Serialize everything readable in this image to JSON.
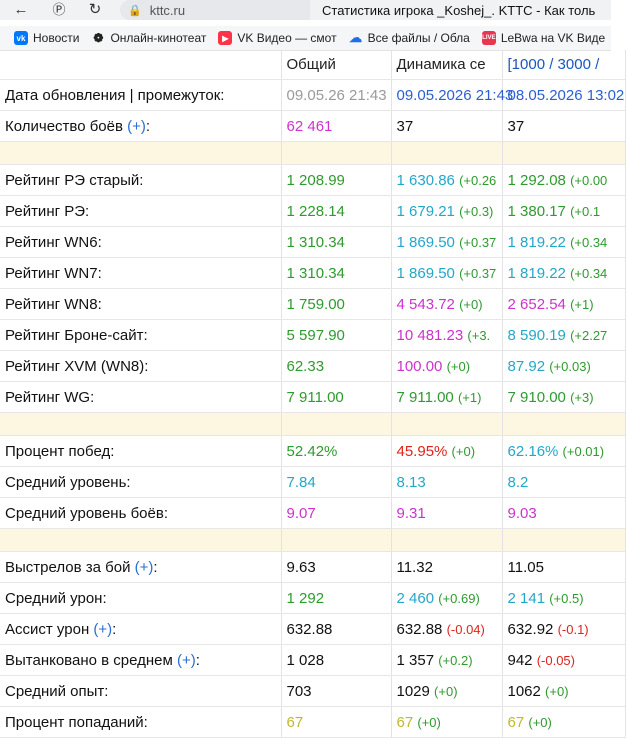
{
  "browser": {
    "url": "kttc.ru",
    "tab_title": "Статистика игрока _Koshej_. KTTC - Как толь",
    "bookmarks": [
      {
        "label": "Новости",
        "icon": "vk-icon"
      },
      {
        "label": "Онлайн-кинотеат",
        "icon": "kinopoisk-icon"
      },
      {
        "label": "VK Видео — смот",
        "icon": "vk-video-icon"
      },
      {
        "label": "Все файлы / Обла",
        "icon": "cloud-icon"
      },
      {
        "label": "LeBwa на VK Виде",
        "icon": "lebwa-icon"
      }
    ]
  },
  "table": {
    "headers": {
      "total": "Общий",
      "dynamics": "Динамика се",
      "links": "[1000 / 3000 / "
    },
    "update": {
      "label": "Дата обновления | промежуток:",
      "total": "09.05.26 21:43",
      "dyn1": "09.05.2026 21:43",
      "dyn2": "08.05.2026 13:02"
    },
    "rows": [
      {
        "type": "data",
        "label": "Количество боёв",
        "plus": "(+)",
        "c0": {
          "v": "62 461",
          "color": "purple"
        },
        "c1": {
          "v": "37",
          "color": "black"
        },
        "c2": {
          "v": "37",
          "color": "black"
        }
      },
      {
        "type": "sep"
      },
      {
        "type": "data",
        "label": "Рейтинг РЭ старый:",
        "c0": {
          "v": "1 208.99",
          "color": "green"
        },
        "c1": {
          "v": "1 630.86",
          "color": "teal",
          "d": "(+0.26",
          "dc": "green"
        },
        "c2": {
          "v": "1 292.08",
          "color": "green",
          "d": "(+0.00",
          "dc": "green"
        }
      },
      {
        "type": "data",
        "label": "Рейтинг РЭ:",
        "c0": {
          "v": "1 228.14",
          "color": "green"
        },
        "c1": {
          "v": "1 679.21",
          "color": "teal",
          "d": "(+0.3)",
          "dc": "green"
        },
        "c2": {
          "v": "1 380.17",
          "color": "green",
          "d": "(+0.1",
          "dc": "green"
        }
      },
      {
        "type": "data",
        "label": "Рейтинг WN6:",
        "c0": {
          "v": "1 310.34",
          "color": "green"
        },
        "c1": {
          "v": "1 869.50",
          "color": "teal",
          "d": "(+0.37",
          "dc": "green"
        },
        "c2": {
          "v": "1 819.22",
          "color": "teal",
          "d": "(+0.34",
          "dc": "green"
        }
      },
      {
        "type": "data",
        "label": "Рейтинг WN7:",
        "c0": {
          "v": "1 310.34",
          "color": "green"
        },
        "c1": {
          "v": "1 869.50",
          "color": "teal",
          "d": "(+0.37",
          "dc": "green"
        },
        "c2": {
          "v": "1 819.22",
          "color": "teal",
          "d": "(+0.34",
          "dc": "green"
        }
      },
      {
        "type": "data",
        "label": "Рейтинг WN8:",
        "c0": {
          "v": "1 759.00",
          "color": "green"
        },
        "c1": {
          "v": "4 543.72",
          "color": "purple",
          "d": "(+0)",
          "dc": "green"
        },
        "c2": {
          "v": "2 652.54",
          "color": "purple",
          "d": "(+1)",
          "dc": "green"
        }
      },
      {
        "type": "data",
        "label": "Рейтинг Броне-сайт:",
        "c0": {
          "v": "5 597.90",
          "color": "green"
        },
        "c1": {
          "v": "10 481.23",
          "color": "purple",
          "d": "(+3.",
          "dc": "green"
        },
        "c2": {
          "v": "8 590.19",
          "color": "teal",
          "d": "(+2.27",
          "dc": "green"
        }
      },
      {
        "type": "data",
        "label": "Рейтинг XVM (WN8):",
        "c0": {
          "v": "62.33",
          "color": "green"
        },
        "c1": {
          "v": "100.00",
          "color": "purple",
          "d": "(+0)",
          "dc": "green"
        },
        "c2": {
          "v": "87.92",
          "color": "teal",
          "d": "(+0.03)",
          "dc": "green"
        }
      },
      {
        "type": "data",
        "label": "Рейтинг WG:",
        "c0": {
          "v": "7 911.00",
          "color": "green"
        },
        "c1": {
          "v": "7 911.00",
          "color": "green",
          "d": "(+1)",
          "dc": "green"
        },
        "c2": {
          "v": "7 910.00",
          "color": "green",
          "d": "(+3)",
          "dc": "green"
        }
      },
      {
        "type": "sep"
      },
      {
        "type": "data",
        "label": "Процент побед:",
        "c0": {
          "v": "52.42%",
          "color": "green"
        },
        "c1": {
          "v": "45.95%",
          "color": "red",
          "d": "(+0)",
          "dc": "green"
        },
        "c2": {
          "v": "62.16%",
          "color": "teal",
          "d": "(+0.01)",
          "dc": "green"
        }
      },
      {
        "type": "data",
        "label": "Средний уровень:",
        "c0": {
          "v": "7.84",
          "color": "teal"
        },
        "c1": {
          "v": "8.13",
          "color": "teal"
        },
        "c2": {
          "v": "8.2",
          "color": "teal"
        }
      },
      {
        "type": "data",
        "label": "Средний уровень боёв:",
        "c0": {
          "v": "9.07",
          "color": "purple"
        },
        "c1": {
          "v": "9.31",
          "color": "purple"
        },
        "c2": {
          "v": "9.03",
          "color": "purple"
        }
      },
      {
        "type": "sep"
      },
      {
        "type": "data",
        "label": "Выстрелов за бой",
        "plus": "(+)",
        "c0": {
          "v": "9.63",
          "color": "black"
        },
        "c1": {
          "v": "11.32",
          "color": "black"
        },
        "c2": {
          "v": "11.05",
          "color": "black"
        }
      },
      {
        "type": "data",
        "label": "Средний урон:",
        "c0": {
          "v": "1 292",
          "color": "green"
        },
        "c1": {
          "v": "2 460",
          "color": "teal",
          "d": "(+0.69)",
          "dc": "green"
        },
        "c2": {
          "v": "2 141",
          "color": "teal",
          "d": "(+0.5)",
          "dc": "green"
        }
      },
      {
        "type": "data",
        "label": "Ассист урон",
        "plus": "(+)",
        "c0": {
          "v": "632.88",
          "color": "black"
        },
        "c1": {
          "v": "632.88",
          "color": "black",
          "d": "(-0.04)",
          "dc": "red"
        },
        "c2": {
          "v": "632.92",
          "color": "black",
          "d": "(-0.1)",
          "dc": "red"
        }
      },
      {
        "type": "data",
        "label": "Вытанковано в среднем",
        "plus": "(+)",
        "c0": {
          "v": "1 028",
          "color": "black"
        },
        "c1": {
          "v": "1 357",
          "color": "black",
          "d": "(+0.2)",
          "dc": "green"
        },
        "c2": {
          "v": "942",
          "color": "black",
          "d": "(-0.05)",
          "dc": "red"
        }
      },
      {
        "type": "data",
        "label": "Средний опыт:",
        "c0": {
          "v": "703",
          "color": "black"
        },
        "c1": {
          "v": "1029",
          "color": "black",
          "d": "(+0)",
          "dc": "green"
        },
        "c2": {
          "v": "1062",
          "color": "black",
          "d": "(+0)",
          "dc": "green"
        }
      },
      {
        "type": "data",
        "label": "Процент попаданий:",
        "c0": {
          "v": "67",
          "color": "olive"
        },
        "c1": {
          "v": "67",
          "color": "olive",
          "d": "(+0)",
          "dc": "green"
        },
        "c2": {
          "v": "67",
          "color": "olive",
          "d": "(+0)",
          "dc": "green"
        }
      }
    ]
  }
}
